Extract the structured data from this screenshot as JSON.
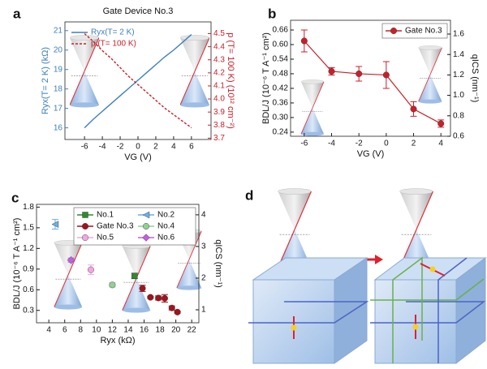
{
  "chart_data": [
    {
      "panel": "a",
      "type": "line",
      "title": "Gate Device No.3",
      "xlabel": "VG (V)",
      "ylabel": "Ryx(T= 2 K) (kΩ)",
      "y2label": "p (T= 100 K) (10¹² cm⁻²)",
      "x": [
        -6,
        -5,
        -4,
        -3,
        -2,
        -1,
        0,
        1,
        2,
        3,
        4,
        5,
        6
      ],
      "xlim": [
        -8.2,
        8.2
      ],
      "xticks": [
        -6,
        -4,
        -2,
        0,
        2,
        4,
        6
      ],
      "ylim": [
        15.4,
        21.45
      ],
      "yticks": [
        16,
        17,
        18,
        19,
        20,
        21
      ],
      "y2lim": [
        3.69,
        4.59
      ],
      "y2ticks": [
        3.7,
        3.8,
        3.9,
        {
          "value": 4.0,
          "label": "4.0"
        },
        4.1,
        4.2,
        4.3,
        4.4,
        4.5
      ],
      "legend": "upper left",
      "series": [
        {
          "name": "Ryx(T= 2 K)",
          "color": "#3d7fbd",
          "style": "solid",
          "values": [
            16.0,
            16.45,
            16.85,
            17.25,
            17.65,
            18.05,
            18.45,
            18.85,
            19.25,
            19.65,
            20.0,
            20.4,
            20.8
          ]
        },
        {
          "name": "p (T= 100 K)",
          "color": "#c8202a",
          "style": "dashed",
          "axis": "y2",
          "values": [
            4.5,
            4.44,
            4.37,
            4.31,
            4.24,
            4.17,
            4.11,
            4.05,
            3.99,
            3.93,
            3.88,
            3.83,
            3.78
          ]
        }
      ]
    },
    {
      "panel": "b",
      "type": "errorbar",
      "xlabel": "VG (V)",
      "ylabel": "BDL/J (10⁻⁶ T A⁻¹ cm²)",
      "y2label": "qICS (nm⁻¹)",
      "xlim": [
        -7.0,
        4.7
      ],
      "xticks": [
        -6,
        -4,
        -2,
        0,
        2,
        4
      ],
      "ylim": [
        0.223,
        0.7
      ],
      "yticks": [
        0.24,
        {
          "value": 0.3,
          "label": "0.30"
        },
        0.36,
        0.42,
        0.48,
        0.54,
        {
          "value": 0.6,
          "label": "0.60"
        },
        0.66
      ],
      "y2lim": [
        0.6,
        1.735
      ],
      "y2ticks": [
        0.6,
        0.8,
        {
          "value": 1.0,
          "label": "1.0"
        },
        1.2,
        1.4,
        1.6
      ],
      "legend": "upper right",
      "series": [
        {
          "name": "Gate No.3",
          "color": "#c8202a",
          "marker": "circle",
          "x": [
            -6,
            -4,
            -2,
            0,
            2,
            4
          ],
          "values": [
            0.615,
            0.49,
            0.48,
            0.475,
            0.335,
            0.275
          ],
          "errors": [
            0.045,
            0.015,
            0.03,
            0.055,
            0.03,
            0.015
          ]
        }
      ]
    },
    {
      "panel": "c",
      "type": "scatter",
      "xlabel": "Ryx (kΩ)",
      "ylabel": "BDL/J (10⁻⁶ T A⁻¹ cm²)",
      "y2label": "qICS (nm⁻¹)",
      "xlim": [
        2.45,
        22.9
      ],
      "xticks": [
        4,
        6,
        8,
        10,
        12,
        14,
        16,
        18,
        20,
        22
      ],
      "ylim": [
        0.12,
        1.84
      ],
      "yticks": [
        0.3,
        0.6,
        0.9,
        1.2,
        1.5,
        1.8
      ],
      "y2lim": [
        0.59,
        4.33
      ],
      "y2ticks": [
        1,
        2,
        3,
        4
      ],
      "legend": "upper right",
      "series": [
        {
          "name": "No.1",
          "color": "#2e8b2e",
          "marker": "square",
          "x": [
            14.8
          ],
          "values": [
            0.8
          ],
          "errors": [
            0.04
          ]
        },
        {
          "name": "No.2",
          "color": "#6aaee8",
          "marker": "triangle",
          "x": [
            4.8
          ],
          "values": [
            1.55
          ],
          "errors": [
            0.07
          ]
        },
        {
          "name": "Gate No.3",
          "color": "#a0141c",
          "marker": "circle",
          "x": [
            15.8,
            16.8,
            17.8,
            18.6,
            19.5,
            20.2
          ],
          "values": [
            0.62,
            0.49,
            0.48,
            0.475,
            0.335,
            0.275
          ],
          "errors": [
            0.045,
            0.015,
            0.03,
            0.055,
            0.03,
            0.015
          ]
        },
        {
          "name": "No.4",
          "color": "#90d090",
          "marker": "circle",
          "x": [
            12.0
          ],
          "values": [
            0.67
          ],
          "errors": [
            0.03
          ]
        },
        {
          "name": "No.5",
          "color": "#f0a8e0",
          "marker": "circle",
          "x": [
            9.3
          ],
          "values": [
            0.89
          ],
          "errors": [
            0.07
          ]
        },
        {
          "name": "No.6",
          "color": "#c060e0",
          "marker": "diamond",
          "x": [
            6.8
          ],
          "values": [
            1.03
          ],
          "errors": [
            0.03
          ]
        }
      ]
    }
  ],
  "diagram": {
    "panel": "d"
  }
}
